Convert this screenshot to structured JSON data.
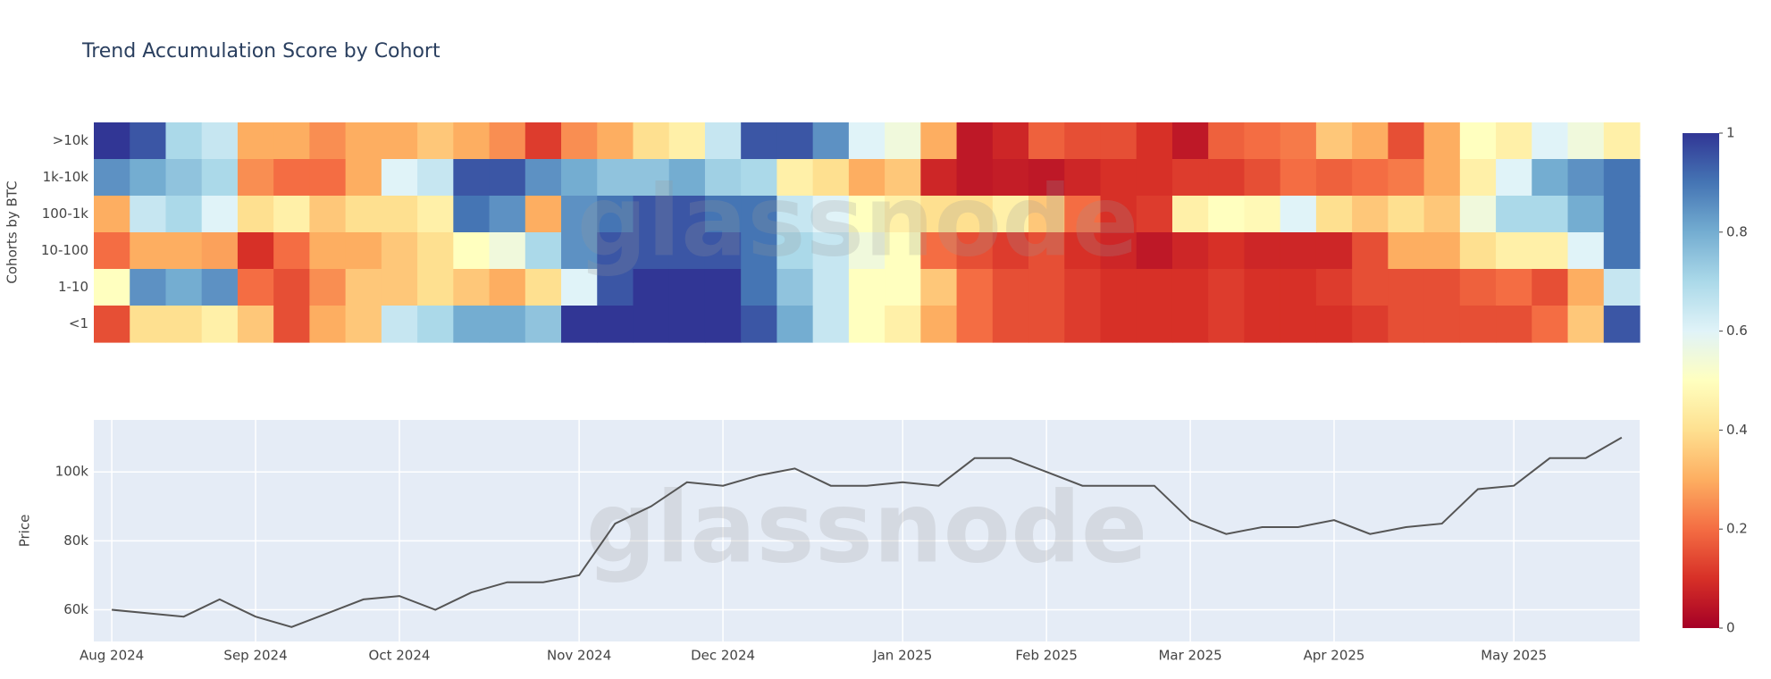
{
  "chart_data": [
    {
      "type": "heatmap",
      "title": "Trend Accumulation Score by Cohort",
      "y_label": "Cohorts by BTC",
      "watermark": "glassnode",
      "y_categories": [
        ">10k",
        "1k-10k",
        "100-1k",
        "10-100",
        "1-10",
        "<1"
      ],
      "z": [
        [
          1.0,
          0.95,
          0.7,
          0.65,
          0.3,
          0.3,
          0.25,
          0.3,
          0.3,
          0.35,
          0.3,
          0.25,
          0.12,
          0.25,
          0.3,
          0.4,
          0.45,
          0.65,
          0.95,
          0.95,
          0.85,
          0.6,
          0.55,
          0.3,
          0.05,
          0.08,
          0.18,
          0.15,
          0.15,
          0.1,
          0.05,
          0.18,
          0.2,
          0.22,
          0.35,
          0.3,
          0.15,
          0.3,
          0.5,
          0.45,
          0.6,
          0.55,
          0.45
        ],
        [
          0.85,
          0.8,
          0.75,
          0.7,
          0.25,
          0.2,
          0.2,
          0.3,
          0.6,
          0.65,
          0.95,
          0.95,
          0.85,
          0.8,
          0.75,
          0.75,
          0.8,
          0.72,
          0.7,
          0.45,
          0.4,
          0.3,
          0.35,
          0.08,
          0.05,
          0.06,
          0.05,
          0.08,
          0.1,
          0.1,
          0.12,
          0.12,
          0.15,
          0.2,
          0.18,
          0.2,
          0.22,
          0.3,
          0.45,
          0.6,
          0.8,
          0.85,
          0.9
        ],
        [
          0.3,
          0.65,
          0.7,
          0.6,
          0.4,
          0.45,
          0.35,
          0.4,
          0.4,
          0.45,
          0.9,
          0.85,
          0.3,
          0.85,
          0.9,
          0.95,
          0.95,
          0.9,
          0.9,
          0.65,
          0.6,
          0.5,
          0.45,
          0.4,
          0.4,
          0.45,
          0.35,
          0.2,
          0.1,
          0.12,
          0.45,
          0.5,
          0.48,
          0.6,
          0.4,
          0.35,
          0.4,
          0.35,
          0.55,
          0.7,
          0.7,
          0.8,
          0.9
        ],
        [
          0.2,
          0.3,
          0.3,
          0.28,
          0.1,
          0.2,
          0.3,
          0.3,
          0.35,
          0.4,
          0.5,
          0.55,
          0.7,
          0.85,
          0.95,
          0.95,
          0.95,
          0.95,
          0.9,
          0.7,
          0.65,
          0.55,
          0.5,
          0.2,
          0.15,
          0.12,
          0.15,
          0.1,
          0.08,
          0.05,
          0.08,
          0.1,
          0.08,
          0.08,
          0.08,
          0.15,
          0.3,
          0.3,
          0.4,
          0.45,
          0.45,
          0.6,
          0.9
        ],
        [
          0.5,
          0.85,
          0.8,
          0.85,
          0.2,
          0.15,
          0.25,
          0.35,
          0.35,
          0.4,
          0.35,
          0.3,
          0.4,
          0.6,
          0.95,
          1.0,
          1.0,
          1.0,
          0.9,
          0.75,
          0.65,
          0.5,
          0.5,
          0.35,
          0.2,
          0.15,
          0.15,
          0.12,
          0.1,
          0.1,
          0.1,
          0.12,
          0.1,
          0.1,
          0.12,
          0.15,
          0.15,
          0.15,
          0.18,
          0.2,
          0.15,
          0.3,
          0.65
        ],
        [
          0.15,
          0.4,
          0.4,
          0.45,
          0.35,
          0.15,
          0.3,
          0.35,
          0.65,
          0.7,
          0.8,
          0.8,
          0.75,
          1.0,
          1.0,
          1.0,
          1.0,
          1.0,
          0.95,
          0.8,
          0.65,
          0.5,
          0.45,
          0.3,
          0.2,
          0.15,
          0.15,
          0.12,
          0.1,
          0.1,
          0.1,
          0.12,
          0.1,
          0.1,
          0.1,
          0.12,
          0.15,
          0.15,
          0.15,
          0.15,
          0.2,
          0.35,
          0.95
        ]
      ],
      "zlim": [
        0,
        1
      ],
      "colorscale": [
        "#a50026",
        "#d73027",
        "#f46d43",
        "#fdae61",
        "#fee090",
        "#ffffbf",
        "#e0f3f8",
        "#abd9e9",
        "#74add1",
        "#4575b4",
        "#313695"
      ],
      "colorbar_ticks": [
        0,
        0.2,
        0.4,
        0.6,
        0.8,
        1
      ]
    },
    {
      "type": "line",
      "y_label": "Price",
      "watermark": "glassnode",
      "categories": [
        "Aug 2024",
        null,
        null,
        null,
        "Sep 2024",
        null,
        null,
        null,
        "Oct 2024",
        null,
        null,
        null,
        null,
        "Nov 2024",
        null,
        null,
        null,
        "Dec 2024",
        null,
        null,
        null,
        null,
        "Jan 2025",
        null,
        null,
        null,
        "Feb 2025",
        null,
        null,
        null,
        "Mar 2025",
        null,
        null,
        null,
        "Apr 2025",
        null,
        null,
        null,
        null,
        "May 2025",
        null,
        null,
        null
      ],
      "values": [
        60000,
        59000,
        58000,
        63000,
        58000,
        55000,
        59000,
        63000,
        64000,
        60000,
        65000,
        68000,
        68000,
        70000,
        85000,
        90000,
        97000,
        96000,
        99000,
        101000,
        96000,
        96000,
        97000,
        96000,
        104000,
        104000,
        100000,
        96000,
        96000,
        96000,
        86000,
        82000,
        84000,
        84000,
        86000,
        82000,
        84000,
        85000,
        95000,
        96000,
        104000,
        104000,
        110000
      ],
      "color": "#555555",
      "ylim": [
        50800,
        115100
      ],
      "yticks": [
        {
          "value": 60000,
          "label": "60k"
        },
        {
          "value": 80000,
          "label": "80k"
        },
        {
          "value": 100000,
          "label": "100k"
        }
      ],
      "grid": true,
      "background": "#e5ecf6"
    }
  ]
}
